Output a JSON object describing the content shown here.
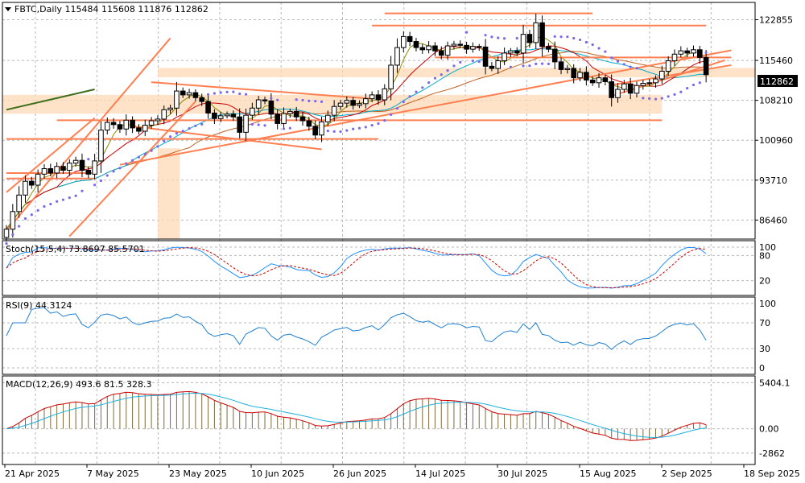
{
  "chart_data": [
    {
      "type": "candlestick",
      "symbol": "FBTC,Daily",
      "ohlc_header": {
        "open": 115484,
        "high": 115608,
        "low": 111876,
        "close": 112862
      },
      "current_price_label": "112862",
      "yticks": [
        122855,
        115460,
        108210,
        100960,
        93710,
        86460
      ],
      "ylim": [
        83000,
        126000
      ],
      "xticks": [
        "21 Apr 2025",
        "7 May 2025",
        "23 May 2025",
        "10 Jun 2025",
        "26 Jun 2025",
        "14 Jul 2025",
        "30 Jul 2025",
        "15 Aug 2025",
        "2 Sep 2025",
        "18 Sep 2025"
      ],
      "grid": true,
      "closes": [
        84800,
        88000,
        91000,
        93500,
        92800,
        94800,
        95800,
        95000,
        96200,
        95500,
        96800,
        97300,
        95500,
        94800,
        97200,
        102800,
        104200,
        103800,
        103000,
        104600,
        103200,
        102600,
        103700,
        104500,
        104800,
        106500,
        106800,
        109900,
        109200,
        109600,
        108700,
        108000,
        105900,
        104900,
        105400,
        105700,
        105200,
        102400,
        105500,
        106800,
        108300,
        108100,
        105700,
        104000,
        105800,
        106200,
        105200,
        104500,
        103500,
        101900,
        104300,
        105500,
        107100,
        107700,
        108200,
        107300,
        107600,
        108500,
        109200,
        108300,
        110300,
        114600,
        117800,
        119800,
        118900,
        117800,
        117400,
        118100,
        117200,
        116400,
        118100,
        118400,
        118200,
        117500,
        118000,
        117900,
        114400,
        114000,
        115400,
        116800,
        117200,
        116800,
        120200,
        118700,
        122300,
        118000,
        117500,
        115200,
        113800,
        114000,
        112300,
        113300,
        111900,
        111400,
        112300,
        111600,
        108700,
        110200,
        111200,
        109500,
        110900,
        111300,
        111400,
        112100,
        113500,
        115400,
        116600,
        117200,
        116800,
        117400,
        116000,
        112862
      ],
      "indicators": [
        {
          "name": "Stoch",
          "header": "Stoch(15,5,4) 73.8697 85.5701",
          "levels": [
            100,
            80,
            20
          ],
          "k": 73.8697,
          "d": 85.5701
        },
        {
          "name": "RSI",
          "header": "RSI(9) 44.3124",
          "levels": [
            100,
            70,
            30,
            0
          ],
          "value": 44.3124
        },
        {
          "name": "MACD",
          "header": "MACD(12,26,9) 493.6 81.5 328.3",
          "levels": [
            5404.1,
            0.0,
            -2862
          ],
          "level_labels": [
            "5404.1",
            "0.00",
            "-2862"
          ],
          "values": [
            493.6,
            81.5,
            328.3
          ]
        }
      ]
    }
  ],
  "colors": {
    "bull": "#ffffff",
    "bear": "#000000",
    "fast_ma": "#8b8b00",
    "slow_ma": "#00aacc",
    "long_ma": "#c06020",
    "red_ma": "#cc0000",
    "sar": "#7b68ee",
    "trend": "#ff7f50",
    "zone": "#fdd9b5",
    "stoch_k": "#1e90ff",
    "stoch_d": "#cc0000",
    "rsi": "#1e7fd0",
    "macd_hist": "#7f6a3a",
    "macd_main": "#cc0000",
    "macd_signal": "#1eb0dd"
  }
}
